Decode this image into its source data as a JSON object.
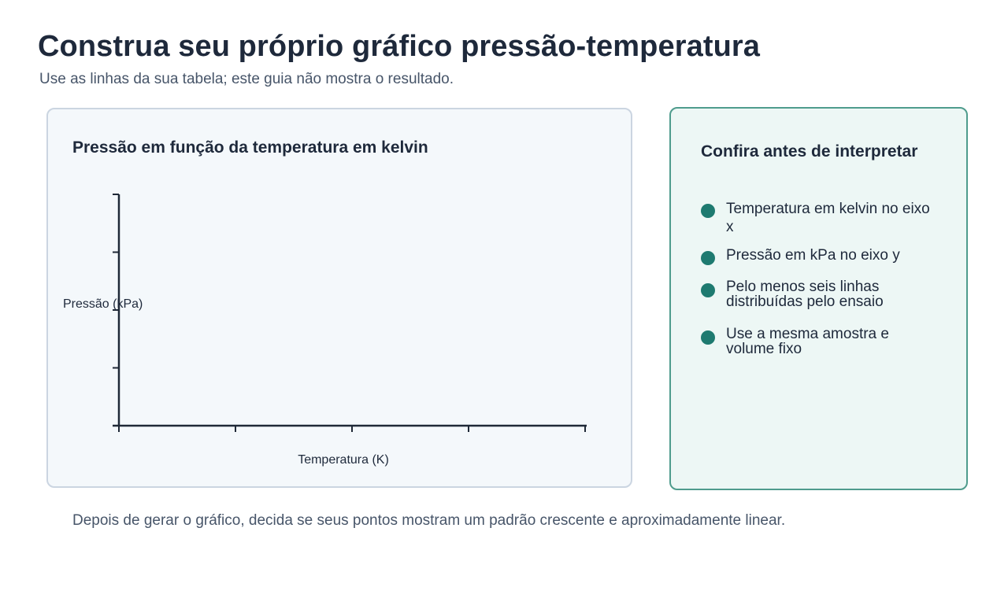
{
  "header": {
    "title": "Construa seu próprio gráfico pressão-temperatura",
    "subtitle": "Use as linhas da sua tabela; este guia não mostra o resultado."
  },
  "chart_card": {
    "title": "Pressão em função da temperatura em kelvin"
  },
  "chart_data": {
    "type": "scatter",
    "title": "Pressão em função da temperatura em kelvin",
    "xlabel": "Temperatura (K)",
    "ylabel": "Pressão (kPa)",
    "x_tick_count": 5,
    "y_tick_count": 5,
    "series": [],
    "grid": false
  },
  "checklist": {
    "title": "Confira antes de interpretar",
    "items": [
      {
        "text": "Temperatura em kelvin no eixo x"
      },
      {
        "text": "Pressão em kPa no eixo y"
      },
      {
        "text": "Pelo menos seis linhas distribuídas pelo ensaio"
      },
      {
        "text": "Use a mesma amostra e volume fixo"
      }
    ],
    "bullet_color": "#1e7a70"
  },
  "footer": {
    "note": "Depois de gerar o gráfico, decida se seus pontos mostram um padrão crescente e aproximadamente linear."
  },
  "colors": {
    "title_text": "#1e293b",
    "muted_text": "#475569",
    "chart_card_bg": "#f4f8fb",
    "chart_card_border": "#cbd5e1",
    "checklist_bg": "#edf7f5",
    "checklist_border": "#4f9c8d",
    "accent": "#1e7a70"
  }
}
